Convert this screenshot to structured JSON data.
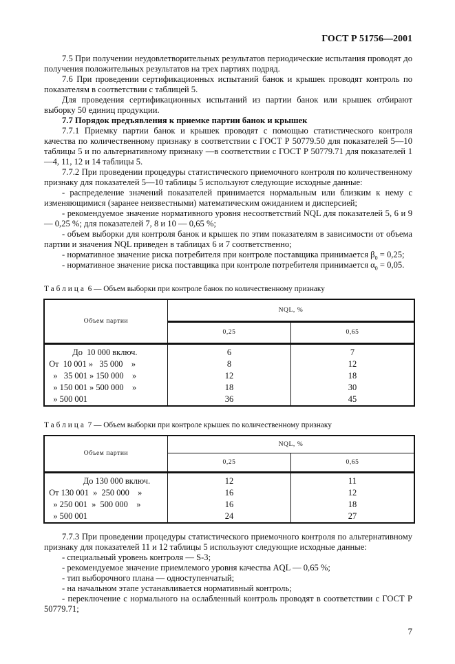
{
  "header": "ГОСТ Р 51756—2001",
  "paragraphs_top": [
    "7.5 При получении неудовлетворительных результатов периодические испытания проводят до получения положительных результатов на трех партиях подряд.",
    "7.6 При проведении сертификационных испытаний банок и крышек проводят контроль по показателям в соответствии с таблицей 5.",
    "Для проведения сертификационных испытаний из партии банок или крышек отбирают выборку 50 единиц продукции.",
    "7.7 Порядок предъявления к приемке партии банок и крышек",
    "7.7.1 Приемку партии банок и крышек проводят с помощью статистического контроля качества по количественному признаку в соответствии с ГОСТ Р 50779.50 для показателей 5—10 таблицы 5 и по альтернативному признаку —в соответствии с ГОСТ Р 50779.71 для показателей 1—4, 11, 12 и 14 таблицы 5.",
    "7.7.2 При проведении процедуры статистического приемочного контроля по количественному признаку для показателей 5—10 таблицы 5 используют следующие исходные данные:",
    "- распределение значений показателей принимается нормальным или близким к нему с изменяющимися (заранее неизвестными) математическим ожиданием и дисперсией;",
    "- рекомендуемое значение нормативного уровня несоответствий NQL для показателей 5, 6 и 9 — 0,25 %; для показателей 7, 8 и 10 — 0,65 %;",
    "- объем выборки для контроля банок и крышек по этим показателям в зависимости от объема партии и значения NQL приведен в таблицах 6 и 7 соответственно;"
  ],
  "risk_lines": [
    {
      "text": "- нормативное значение риска потребителя при контроле поставщика принимается ",
      "sym": "β",
      "sub": "0",
      "value": " = 0,25;"
    },
    {
      "text": "- нормативное значение риска поставщика при контроле потребителя принимается ",
      "sym": "α",
      "sub": "0",
      "value": " = 0,05."
    }
  ],
  "table6": {
    "caption_prefix": "Таблица",
    "caption": "6 — Объем выборки при контроле банок по количественному признаку",
    "col_lot": "Объем партии",
    "col_nql": "NQL, %",
    "nql_values": [
      "0,25",
      "0,65"
    ],
    "rows": [
      [
        "             До  10 000 включ.",
        "6",
        "7"
      ],
      [
        "  От  10 001 »   35 000    »",
        "8",
        "12"
      ],
      [
        "    »   35 001 » 150 000    »",
        "12",
        "18"
      ],
      [
        "    » 150 001 » 500 000    »",
        "18",
        "30"
      ],
      [
        "    » 500 001",
        "36",
        "45"
      ]
    ]
  },
  "table7": {
    "caption_prefix": "Таблица",
    "caption": "7 — Объем выборки при контроле крышек по количественному признаку",
    "col_lot": "Объем партии",
    "col_nql": "NQL, %",
    "nql_values": [
      "0,25",
      "0,65"
    ],
    "rows": [
      [
        "                  До 130 000 включ.",
        "12",
        "11"
      ],
      [
        "  От 130 001  »  250 000    »",
        "16",
        "12"
      ],
      [
        "    » 250 001  »  500 000    »",
        "16",
        "18"
      ],
      [
        "    » 500 001",
        "24",
        "27"
      ]
    ]
  },
  "paragraphs_bottom": [
    "7.7.3 При проведении процедуры статистического приемочного контроля по альтернативному признаку для показателей 11 и 12 таблицы 5 используют следующие исходные данные:",
    "- специальный уровень контроля — S-3;",
    "- рекомендуемое значение приемлемого уровня качества AQL — 0,65 %;",
    "- тип выборочного плана — одноступенчатый;",
    "- на начальном этапе устанавливается нормативный контроль;",
    "- переключение с нормального на ослабленный контроль проводят в соответствии с ГОСТ Р 50779.71;"
  ],
  "page_number": "7"
}
